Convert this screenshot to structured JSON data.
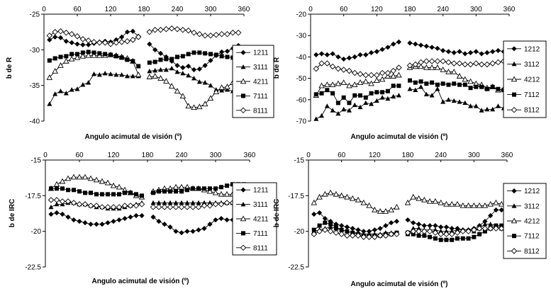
{
  "chart_data": [
    {
      "type": "line",
      "ylabel": "b de R",
      "xlabel": "Angulo acimutal de visión (º)",
      "xlim": [
        0,
        360
      ],
      "ylim": [
        -40,
        -25
      ],
      "x_ticks": [
        "0",
        "60",
        "120",
        "180",
        "240",
        "300",
        "360"
      ],
      "y_ticks": [
        "-25",
        "-30",
        "-35",
        "-40"
      ],
      "legend": [
        "1211",
        "3111",
        "4211",
        "7111",
        "8111"
      ],
      "markers": [
        "diamond",
        "triangle",
        "triangle-open",
        "square",
        "diamond-open"
      ],
      "x": [
        10,
        20,
        30,
        40,
        50,
        60,
        70,
        80,
        90,
        100,
        110,
        120,
        130,
        140,
        150,
        160,
        170,
        190,
        200,
        210,
        220,
        230,
        240,
        250,
        260,
        270,
        280,
        290,
        300,
        310,
        320,
        330,
        340,
        350
      ],
      "series": [
        {
          "name": "1211",
          "values": [
            -28.6,
            -28.2,
            -28.3,
            -28.8,
            -29.0,
            -29.2,
            -29.3,
            -29.3,
            -29.1,
            -28.9,
            -28.8,
            -28.9,
            -28.6,
            -28.2,
            -27.5,
            -27.4,
            -28.1,
            -29.2,
            -30.0,
            -30.5,
            -31.0,
            -31.6,
            -32.2,
            -32.5,
            -32.3,
            -32.8,
            -32.7,
            -32.2,
            -31.5,
            -30.8,
            -30.3,
            -30.2,
            -29.8,
            -29.4
          ]
        },
        {
          "name": "3111",
          "values": [
            -37.6,
            -36.2,
            -35.8,
            -36.1,
            -35.6,
            -35.5,
            -34.9,
            -34.6,
            -33.4,
            -33.5,
            -33.3,
            -33.4,
            -33.5,
            -33.5,
            -33.7,
            -33.7,
            -33.7,
            -33.0,
            -32.9,
            -32.8,
            -32.8,
            -32.6,
            -33.1,
            -33.3,
            -33.6,
            -34.0,
            -34.5,
            -34.6,
            -35.0,
            -35.6,
            -35.7,
            -35.6,
            -35.8,
            -36.3
          ]
        },
        {
          "name": "4211",
          "values": [
            -33.9,
            -33.0,
            -32.2,
            -31.6,
            -31.3,
            -31.1,
            -30.9,
            -30.8,
            -30.8,
            -30.8,
            -30.8,
            -30.7,
            -30.8,
            -31.0,
            -31.2,
            -31.6,
            -33.5,
            -33.8,
            -33.7,
            -34.0,
            -34.4,
            -35.1,
            -35.8,
            -36.5,
            -37.9,
            -38.1,
            -38.0,
            -37.6,
            -36.8,
            -35.9,
            -35.3,
            -35.2,
            -34.6,
            -34.6
          ]
        },
        {
          "name": "7111",
          "values": [
            -31.5,
            -31.2,
            -31.0,
            -30.9,
            -30.6,
            -30.6,
            -30.4,
            -30.3,
            -30.4,
            -30.5,
            -30.6,
            -30.7,
            -30.9,
            -31.1,
            -31.4,
            -31.6,
            -32.3,
            -31.8,
            -31.7,
            -31.4,
            -31.3,
            -31.3,
            -31.0,
            -30.9,
            -30.6,
            -30.4,
            -30.4,
            -30.5,
            -30.6,
            -30.7,
            -30.9,
            -31.0,
            -31.1,
            -31.3
          ]
        },
        {
          "name": "8111",
          "values": [
            -28.0,
            -27.5,
            -27.4,
            -27.6,
            -27.8,
            -28.1,
            -28.5,
            -28.7,
            -28.9,
            -29.0,
            -29.0,
            -29.2,
            -29.0,
            -28.9,
            -28.8,
            -28.6,
            -28.2,
            -27.5,
            -27.2,
            -27.2,
            -27.1,
            -27.0,
            -27.1,
            -27.2,
            -27.3,
            -27.6,
            -27.8,
            -28.0,
            -28.0,
            -27.9,
            -27.8,
            -27.8,
            -27.6,
            -27.6
          ]
        }
      ]
    },
    {
      "type": "line",
      "ylabel": "b de R",
      "xlabel": "Angulo acimutal de visión (º)",
      "xlim": [
        0,
        360
      ],
      "ylim": [
        -70,
        -20
      ],
      "x_ticks": [
        "0",
        "60",
        "120",
        "180",
        "240",
        "300",
        "360"
      ],
      "y_ticks": [
        "-20",
        "-30",
        "-40",
        "-50",
        "-60",
        "-70"
      ],
      "legend": [
        "1212",
        "3112",
        "4212",
        "7112",
        "8112"
      ],
      "markers": [
        "diamond",
        "triangle",
        "triangle-open",
        "square",
        "diamond-open"
      ],
      "x": [
        10,
        20,
        30,
        40,
        50,
        60,
        70,
        80,
        90,
        100,
        110,
        120,
        130,
        140,
        150,
        160,
        180,
        190,
        200,
        210,
        220,
        230,
        240,
        250,
        260,
        270,
        280,
        290,
        300,
        310,
        320,
        330,
        340,
        350
      ],
      "series": [
        {
          "name": "1212",
          "values": [
            -39.0,
            -38.5,
            -39.0,
            -38.5,
            -40.0,
            -41.0,
            -40.5,
            -40.0,
            -39.0,
            -39.0,
            -38.0,
            -37.5,
            -36.5,
            -35.5,
            -34.0,
            -33.0,
            -33.5,
            -34.0,
            -34.5,
            -35.0,
            -35.5,
            -36.0,
            -37.0,
            -37.5,
            -38.0,
            -37.5,
            -38.5,
            -38.0,
            -37.5,
            -38.5,
            -38.0,
            -37.5,
            -37.0,
            -37.5
          ]
        },
        {
          "name": "3112",
          "values": [
            -69.0,
            -67.5,
            -63.0,
            -65.0,
            -66.5,
            -64.5,
            -65.0,
            -62.5,
            -63.5,
            -61.5,
            -62.0,
            -60.5,
            -59.0,
            -59.5,
            -58.5,
            -58.0,
            -55.0,
            -55.5,
            -54.0,
            -57.5,
            -58.0,
            -55.0,
            -61.0,
            -60.0,
            -60.5,
            -61.0,
            -61.5,
            -63.0,
            -63.0,
            -65.0,
            -64.5,
            -64.5,
            -63.0,
            -64.0
          ]
        },
        {
          "name": "4212",
          "values": [
            -58.0,
            -53.5,
            -53.0,
            -53.0,
            -52.5,
            -52.0,
            -53.5,
            -53.0,
            -52.0,
            -51.5,
            -52.5,
            -51.0,
            -50.5,
            -49.0,
            -49.0,
            -48.5,
            -45.0,
            -44.5,
            -44.5,
            -45.0,
            -45.0,
            -45.0,
            -46.0,
            -47.0,
            -47.0,
            -49.0,
            -50.5,
            -51.5,
            -52.5,
            -53.0,
            -54.5,
            -54.0,
            -55.5,
            -55.0
          ]
        },
        {
          "name": "7112",
          "values": [
            -57.5,
            -57.0,
            -55.5,
            -57.0,
            -61.5,
            -59.0,
            -61.5,
            -58.0,
            -58.0,
            -59.0,
            -57.0,
            -56.5,
            -56.5,
            -56.0,
            -53.5,
            -53.5,
            -51.0,
            -52.0,
            -51.5,
            -52.5,
            -52.0,
            -53.0,
            -52.5,
            -53.0,
            -52.5,
            -53.0,
            -53.0,
            -54.5,
            -54.0,
            -54.0,
            -55.0,
            -54.0,
            -55.0,
            -55.5
          ]
        },
        {
          "name": "8112",
          "values": [
            -45.5,
            -43.0,
            -43.0,
            -44.5,
            -45.5,
            -46.0,
            -46.5,
            -47.5,
            -48.0,
            -48.5,
            -48.5,
            -48.5,
            -47.5,
            -47.5,
            -46.5,
            -45.0,
            -44.0,
            -43.5,
            -42.5,
            -42.0,
            -42.0,
            -42.0,
            -42.0,
            -42.5,
            -43.0,
            -43.0,
            -43.5,
            -43.5,
            -43.0,
            -43.5,
            -43.5,
            -43.0,
            -42.5,
            -42.0
          ]
        }
      ]
    },
    {
      "type": "line",
      "ylabel": "b de IRC",
      "xlabel": "Angulo acimutal de visión (º)",
      "xlim": [
        0,
        360
      ],
      "ylim": [
        -22.5,
        -15
      ],
      "x_ticks": [
        "0",
        "60",
        "120",
        "180",
        "240",
        "300",
        "360"
      ],
      "y_ticks": [
        "-15",
        "-17.5",
        "-20",
        "-22.5"
      ],
      "legend": [
        "1211",
        "3111",
        "4211",
        "7111",
        "8111"
      ],
      "markers": [
        "diamond",
        "triangle",
        "triangle-open",
        "square",
        "diamond-open"
      ],
      "x": [
        10,
        20,
        30,
        40,
        50,
        60,
        70,
        80,
        90,
        100,
        110,
        120,
        130,
        140,
        150,
        160,
        170,
        190,
        200,
        210,
        220,
        230,
        240,
        250,
        260,
        270,
        280,
        290,
        300,
        310,
        320,
        330,
        340,
        350
      ],
      "series": [
        {
          "name": "1211",
          "values": [
            -18.8,
            -18.7,
            -18.8,
            -19.0,
            -19.2,
            -19.3,
            -19.4,
            -19.5,
            -19.5,
            -19.5,
            -19.4,
            -19.3,
            -19.2,
            -19.1,
            -19.0,
            -18.9,
            -18.9,
            -19.0,
            -19.3,
            -19.5,
            -19.7,
            -20.0,
            -20.1,
            -20.0,
            -20.0,
            -19.9,
            -19.8,
            -19.5,
            -19.2,
            -19.1,
            -19.2,
            -19.2,
            -19.1,
            -19.0
          ]
        },
        {
          "name": "3111",
          "values": [
            -18.3,
            -18.1,
            -18.1,
            -18.0,
            -18.0,
            -18.1,
            -18.1,
            -18.2,
            -18.3,
            -18.3,
            -18.4,
            -18.4,
            -18.4,
            -18.3,
            -18.2,
            -18.1,
            -18.0,
            -18.0,
            -18.0,
            -18.0,
            -18.0,
            -18.0,
            -18.0,
            -18.0,
            -18.0,
            -18.0,
            -18.0,
            -18.0,
            -18.0,
            -18.0,
            -18.0,
            -18.0,
            -18.0,
            -18.0
          ]
        },
        {
          "name": "4211",
          "values": [
            -17.0,
            -16.7,
            -16.5,
            -16.3,
            -16.2,
            -16.2,
            -16.2,
            -16.3,
            -16.4,
            -16.5,
            -16.6,
            -16.8,
            -16.9,
            -17.1,
            -17.3,
            -17.5,
            -17.6,
            -17.2,
            -17.1,
            -17.0,
            -17.0,
            -16.9,
            -16.9,
            -16.9,
            -17.0,
            -17.0,
            -17.1,
            -17.2,
            -17.3,
            -17.4,
            -17.4,
            -17.4,
            -17.5,
            -17.5
          ]
        },
        {
          "name": "7111",
          "values": [
            -17.0,
            -17.0,
            -17.0,
            -17.1,
            -17.1,
            -17.2,
            -17.3,
            -17.3,
            -17.4,
            -17.4,
            -17.4,
            -17.4,
            -17.4,
            -17.3,
            -17.3,
            -17.4,
            -17.5,
            -17.3,
            -17.2,
            -17.2,
            -17.2,
            -17.2,
            -17.2,
            -17.1,
            -17.0,
            -17.0,
            -17.0,
            -17.0,
            -17.0,
            -16.9,
            -16.8,
            -16.7,
            -16.7,
            -16.7
          ]
        },
        {
          "name": "8111",
          "values": [
            -17.8,
            -17.8,
            -17.9,
            -17.9,
            -18.0,
            -18.1,
            -18.1,
            -18.2,
            -18.2,
            -18.3,
            -18.3,
            -18.3,
            -18.3,
            -18.2,
            -18.2,
            -18.2,
            -18.1,
            -18.3,
            -18.3,
            -18.3,
            -18.3,
            -18.3,
            -18.3,
            -18.3,
            -18.3,
            -18.3,
            -18.2,
            -18.2,
            -18.1,
            -18.1,
            -18.0,
            -18.0,
            -17.9,
            -17.9
          ]
        }
      ]
    },
    {
      "type": "line",
      "ylabel": "b de IRC",
      "xlabel": "Angulo acimutal de visión (º)",
      "xlim": [
        0,
        360
      ],
      "ylim": [
        -22.5,
        -15
      ],
      "x_ticks": [
        "0",
        "60",
        "120",
        "180",
        "240",
        "300",
        "360"
      ],
      "y_ticks": [
        "-15",
        "-17.5",
        "-20",
        "-22.5"
      ],
      "legend": [
        "1212",
        "3112",
        "4212",
        "7112",
        "8112"
      ],
      "markers": [
        "diamond",
        "triangle",
        "triangle-open",
        "square",
        "diamond-open"
      ],
      "x": [
        10,
        20,
        30,
        40,
        50,
        60,
        70,
        80,
        90,
        100,
        110,
        120,
        130,
        140,
        150,
        160,
        180,
        190,
        200,
        210,
        220,
        230,
        240,
        250,
        260,
        270,
        280,
        290,
        300,
        310,
        320,
        330,
        340,
        350
      ],
      "series": [
        {
          "name": "1212",
          "values": [
            -18.8,
            -18.7,
            -19.1,
            -19.3,
            -19.5,
            -19.6,
            -19.7,
            -19.8,
            -19.9,
            -20.0,
            -20.0,
            -19.9,
            -19.8,
            -19.6,
            -19.4,
            -19.3,
            -19.2,
            -19.4,
            -19.5,
            -19.6,
            -19.6,
            -19.6,
            -19.7,
            -19.7,
            -19.8,
            -19.8,
            -19.9,
            -19.9,
            -19.8,
            -19.6,
            -19.3,
            -18.9,
            -18.5,
            -18.5
          ]
        },
        {
          "name": "3112",
          "values": [
            -20.0,
            -19.9,
            -19.8,
            -19.7,
            -19.8,
            -19.9,
            -20.0,
            -20.1,
            -20.1,
            -20.2,
            -20.2,
            -20.2,
            -20.2,
            -20.1,
            -20.1,
            -20.1,
            -20.2,
            -19.8,
            -19.8,
            -19.9,
            -19.9,
            -19.9,
            -20.0,
            -20.0,
            -20.0,
            -19.9,
            -19.9,
            -19.9,
            -20.0,
            -19.8,
            -19.5,
            -19.5,
            -19.6,
            -19.8
          ]
        },
        {
          "name": "4212",
          "values": [
            -18.0,
            -17.6,
            -17.4,
            -17.3,
            -17.4,
            -17.5,
            -17.6,
            -17.7,
            -17.8,
            -18.0,
            -18.2,
            -18.5,
            -18.6,
            -18.6,
            -18.5,
            -18.3,
            -18.0,
            -17.6,
            -17.7,
            -17.8,
            -17.9,
            -17.9,
            -18.0,
            -18.1,
            -18.1,
            -18.1,
            -18.2,
            -18.2,
            -18.2,
            -18.2,
            -18.2,
            -18.1,
            -18.0,
            -18.1
          ]
        },
        {
          "name": "7112",
          "values": [
            -19.9,
            -19.6,
            -19.4,
            -19.5,
            -19.7,
            -19.9,
            -20.0,
            -20.1,
            -20.2,
            -20.3,
            -20.3,
            -20.3,
            -20.3,
            -20.2,
            -20.2,
            -20.1,
            -20.1,
            -20.2,
            -20.3,
            -20.3,
            -20.4,
            -20.5,
            -20.6,
            -20.6,
            -20.6,
            -20.5,
            -20.5,
            -20.5,
            -20.4,
            -20.2,
            -20.0,
            -19.8,
            -19.6,
            -19.6
          ]
        },
        {
          "name": "8112",
          "values": [
            -20.2,
            -20.0,
            -19.9,
            -20.0,
            -20.1,
            -20.2,
            -20.3,
            -20.3,
            -20.3,
            -20.4,
            -20.4,
            -20.4,
            -20.3,
            -20.3,
            -20.2,
            -20.2,
            -20.1,
            -20.0,
            -20.0,
            -20.0,
            -20.0,
            -20.1,
            -20.2,
            -20.2,
            -20.2,
            -20.1,
            -20.0,
            -20.0,
            -19.9,
            -19.8,
            -19.8,
            -19.8,
            -19.8,
            -19.8
          ]
        }
      ]
    }
  ]
}
